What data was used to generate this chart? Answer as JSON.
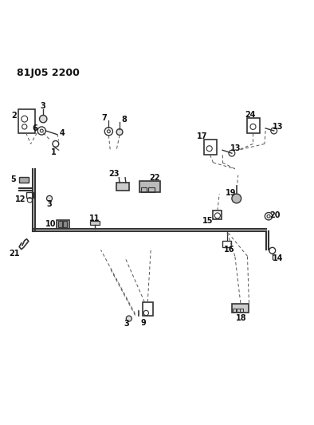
{
  "title": "81J05 2200",
  "bg_color": "#ffffff",
  "line_color": "#333333",
  "fig_width": 3.94,
  "fig_height": 5.33,
  "dpi": 100
}
